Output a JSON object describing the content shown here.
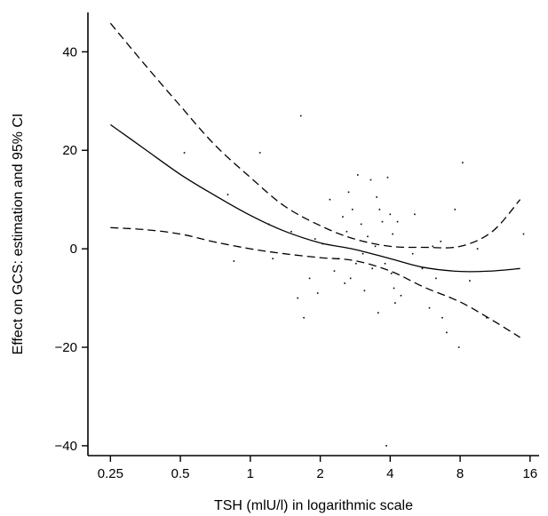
{
  "chart_data": {
    "type": "line",
    "title": "",
    "xlabel": "TSH (mlU/l) in logarithmic scale",
    "ylabel": "Effect on GCS: estimation and 95% CI",
    "xscale": "log2",
    "xlim": [
      0.2,
      17.5
    ],
    "ylim": [
      -42,
      48
    ],
    "x_ticks": [
      0.25,
      0.5,
      1,
      2,
      4,
      8,
      16
    ],
    "x_tick_labels": [
      "0.25",
      "0.5",
      "1",
      "2",
      "4",
      "8",
      "16"
    ],
    "y_ticks": [
      -40,
      -20,
      0,
      20,
      40
    ],
    "y_tick_labels": [
      "−40",
      "−20",
      "0",
      "20",
      "40"
    ],
    "grid": false,
    "legend": "none",
    "colors": {
      "line": "#000000",
      "points": "#000000"
    },
    "series": [
      {
        "style": "solid",
        "x": [
          0.25,
          0.35,
          0.5,
          0.7,
          1.0,
          1.4,
          2.0,
          2.8,
          4.0,
          5.6,
          8.0,
          11.0,
          14.5
        ],
        "y": [
          25.2,
          20.3,
          15.1,
          10.9,
          6.8,
          3.6,
          1.2,
          -0.1,
          -2.0,
          -3.8,
          -4.6,
          -4.5,
          -4.0
        ]
      },
      {
        "style": "dashed",
        "x": [
          0.25,
          0.35,
          0.5,
          0.7,
          1.0,
          1.4,
          2.0,
          2.8,
          4.0,
          5.6,
          8.0,
          11.0,
          14.5
        ],
        "y": [
          45.8,
          37.5,
          29.0,
          21.2,
          14.5,
          8.7,
          4.7,
          2.0,
          0.5,
          0.3,
          0.5,
          3.5,
          10.0
        ]
      },
      {
        "style": "dashed",
        "x": [
          0.25,
          0.35,
          0.5,
          0.7,
          1.0,
          1.4,
          2.0,
          2.8,
          4.0,
          5.6,
          8.0,
          11.0,
          14.5
        ],
        "y": [
          4.3,
          3.9,
          3.0,
          1.4,
          0.0,
          -1.0,
          -1.8,
          -2.4,
          -4.5,
          -7.8,
          -10.8,
          -14.5,
          -18.0
        ]
      }
    ],
    "points": [
      [
        0.52,
        19.5
      ],
      [
        0.8,
        11.0
      ],
      [
        0.85,
        -2.5
      ],
      [
        1.1,
        19.5
      ],
      [
        1.2,
        5.0
      ],
      [
        1.25,
        -2.0
      ],
      [
        1.5,
        3.5
      ],
      [
        1.6,
        -10.0
      ],
      [
        1.65,
        27.0
      ],
      [
        1.7,
        -14.0
      ],
      [
        1.8,
        -6.0
      ],
      [
        1.9,
        2.0
      ],
      [
        1.95,
        -9.0
      ],
      [
        2.05,
        1.0
      ],
      [
        2.2,
        10.0
      ],
      [
        2.3,
        -4.5
      ],
      [
        2.4,
        -2.0
      ],
      [
        2.5,
        6.5
      ],
      [
        2.55,
        -7.0
      ],
      [
        2.6,
        3.5
      ],
      [
        2.65,
        11.5
      ],
      [
        2.7,
        -6.0
      ],
      [
        2.75,
        8.0
      ],
      [
        2.85,
        -3.0
      ],
      [
        2.9,
        15.0
      ],
      [
        3.0,
        5.0
      ],
      [
        3.05,
        -1.0
      ],
      [
        3.1,
        -8.5
      ],
      [
        3.2,
        2.5
      ],
      [
        3.3,
        14.0
      ],
      [
        3.35,
        -4.0
      ],
      [
        3.45,
        0.5
      ],
      [
        3.5,
        10.5
      ],
      [
        3.55,
        -13.0
      ],
      [
        3.6,
        8.0
      ],
      [
        3.7,
        5.5
      ],
      [
        3.8,
        -3.0
      ],
      [
        3.85,
        -40.0
      ],
      [
        3.9,
        14.5
      ],
      [
        4.0,
        7.0
      ],
      [
        4.05,
        -5.0
      ],
      [
        4.1,
        3.0
      ],
      [
        4.15,
        -8.0
      ],
      [
        4.2,
        -11.0
      ],
      [
        4.3,
        5.5
      ],
      [
        4.45,
        -9.5
      ],
      [
        5.0,
        -1.0
      ],
      [
        5.1,
        7.0
      ],
      [
        5.5,
        -4.0
      ],
      [
        5.9,
        -12.0
      ],
      [
        6.1,
        0.5
      ],
      [
        6.3,
        -6.0
      ],
      [
        6.6,
        1.5
      ],
      [
        6.7,
        -14.0
      ],
      [
        7.0,
        -17.0
      ],
      [
        7.6,
        8.0
      ],
      [
        7.9,
        -20.0
      ],
      [
        8.2,
        17.5
      ],
      [
        8.8,
        -6.5
      ],
      [
        9.5,
        0.0
      ],
      [
        10.4,
        -14.0
      ],
      [
        15.0,
        3.0
      ]
    ]
  }
}
